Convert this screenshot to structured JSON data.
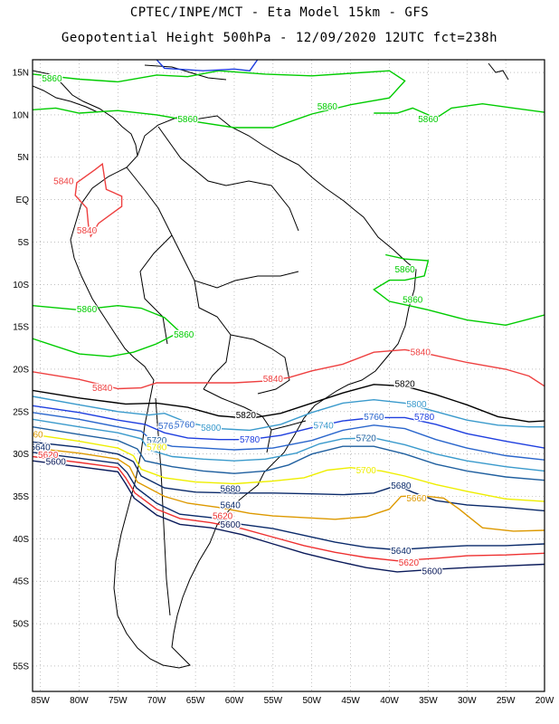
{
  "header": {
    "line1": "CPTEC/INPE/MCT -  Eta Model 15km - GFS",
    "line2": "Geopotential Height 500hPa - 12/09/2020 12UTC fct=238h"
  },
  "axes": {
    "lat_labels": [
      "15N",
      "10N",
      "5N",
      "EQ",
      "5S",
      "10S",
      "15S",
      "20S",
      "25S",
      "30S",
      "35S",
      "40S",
      "45S",
      "50S",
      "55S"
    ],
    "lat_values": [
      15,
      10,
      5,
      0,
      -5,
      -10,
      -15,
      -20,
      -25,
      -30,
      -35,
      -40,
      -45,
      -50,
      -55
    ],
    "lon_labels": [
      "85W",
      "80W",
      "75W",
      "70W",
      "65W",
      "60W",
      "55W",
      "50W",
      "45W",
      "40W",
      "35W",
      "30W",
      "25W",
      "20W"
    ],
    "lon_values": [
      -85,
      -80,
      -75,
      -70,
      -65,
      -60,
      -55,
      -50,
      -45,
      -40,
      -35,
      -30,
      -25,
      -20
    ],
    "lon_range": [
      -86,
      -20
    ],
    "lat_range": [
      -58,
      16.5
    ]
  },
  "contour_colors": {
    "5860": "#00cc00",
    "5840": "#ee4040",
    "5820": "#000000",
    "5800": "#3a9acc",
    "5780": "#1f3fdf",
    "5760": "#2a66cc",
    "5740": "#3a9acc",
    "5720": "#1f5f9f",
    "5700": "#eeee00",
    "5680": "#0a2a6a",
    "5660": "#dd9900",
    "5640": "#0a2a6a",
    "5620": "#ee3030",
    "5600": "#0a1a5a"
  },
  "contour_labels": [
    {
      "text": "5860",
      "color": "#00cc00",
      "lon": -83.5,
      "lat": 14.3
    },
    {
      "text": "5860",
      "color": "#00cc00",
      "lon": -66,
      "lat": 9.5
    },
    {
      "text": "5860",
      "color": "#00cc00",
      "lon": -48,
      "lat": 11
    },
    {
      "text": "5860",
      "color": "#00cc00",
      "lon": -35,
      "lat": 9.5
    },
    {
      "text": "5840",
      "color": "#ee4040",
      "lon": -82,
      "lat": 2.2
    },
    {
      "text": "5840",
      "color": "#ee4040",
      "lon": -79,
      "lat": -3.6
    },
    {
      "text": "5860",
      "color": "#00cc00",
      "lon": -38,
      "lat": -8.2
    },
    {
      "text": "5860",
      "color": "#00cc00",
      "lon": -37,
      "lat": -11.8
    },
    {
      "text": "5860",
      "color": "#00cc00",
      "lon": -79,
      "lat": -12.9
    },
    {
      "text": "5860",
      "color": "#00cc00",
      "lon": -66.5,
      "lat": -15.9
    },
    {
      "text": "5840",
      "color": "#ee4040",
      "lon": -36,
      "lat": -18
    },
    {
      "text": "5840",
      "color": "#ee4040",
      "lon": -55,
      "lat": -21.1
    },
    {
      "text": "5840",
      "color": "#ee4040",
      "lon": -77,
      "lat": -22.2
    },
    {
      "text": "5820",
      "color": "#000000",
      "lon": -38,
      "lat": -21.7
    },
    {
      "text": "5820",
      "color": "#000000",
      "lon": -58.5,
      "lat": -25.4
    },
    {
      "text": "5800",
      "color": "#3a9acc",
      "lon": -36.5,
      "lat": -24.1
    },
    {
      "text": "5780",
      "color": "#1f3fdf",
      "lon": -35.5,
      "lat": -25.6
    },
    {
      "text": "5760",
      "color": "#2a66cc",
      "lon": -42,
      "lat": -25.6
    },
    {
      "text": "5800",
      "color": "#3a9acc",
      "lon": -63,
      "lat": -26.9
    },
    {
      "text": "5760",
      "color": "#2a66cc",
      "lon": -68.5,
      "lat": -26.7
    },
    {
      "text": "5740",
      "color": "#3a9acc",
      "lon": -48.5,
      "lat": -26.6
    },
    {
      "text": "5720",
      "color": "#1f5f9f",
      "lon": -43,
      "lat": -28.1
    },
    {
      "text": "5780",
      "color": "#1f3fdf",
      "lon": -58,
      "lat": -28.3
    },
    {
      "text": "5720",
      "color": "#1f5f9f",
      "lon": -70,
      "lat": -28.4
    },
    {
      "text": "5700",
      "color": "#eeee00",
      "lon": -70,
      "lat": -29.2
    },
    {
      "text": "5700",
      "color": "#eeee00",
      "lon": -43,
      "lat": -31.9
    },
    {
      "text": "5680",
      "color": "#0a2a6a",
      "lon": -60.5,
      "lat": -34.1
    },
    {
      "text": "5680",
      "color": "#0a2a6a",
      "lon": -38.5,
      "lat": -33.7
    },
    {
      "text": "5660",
      "color": "#dd9900",
      "lon": -36.5,
      "lat": -35.2
    },
    {
      "text": "5640",
      "color": "#0a2a6a",
      "lon": -60.5,
      "lat": -36
    },
    {
      "text": "5620",
      "color": "#ee3030",
      "lon": -61.5,
      "lat": -37.3
    },
    {
      "text": "5600",
      "color": "#0a1a5a",
      "lon": -60.5,
      "lat": -38.3
    },
    {
      "text": "5640",
      "color": "#0a2a6a",
      "lon": -38.5,
      "lat": -41.4
    },
    {
      "text": "5620",
      "color": "#ee3030",
      "lon": -37.5,
      "lat": -42.8
    },
    {
      "text": "5600",
      "color": "#0a1a5a",
      "lon": -34.5,
      "lat": -43.8
    },
    {
      "text": "5640",
      "color": "#0a2a6a",
      "lon": -85,
      "lat": -29.2
    },
    {
      "text": "5620",
      "color": "#ee3030",
      "lon": -84,
      "lat": -30.1
    },
    {
      "text": "5600",
      "color": "#0a1a5a",
      "lon": -83,
      "lat": -30.9
    },
    {
      "text": "60",
      "color": "#dd9900",
      "lon": -85.3,
      "lat": -27.7
    },
    {
      "text": "5760",
      "color": "#2a66cc",
      "lon": -66.4,
      "lat": -26.5
    }
  ]
}
